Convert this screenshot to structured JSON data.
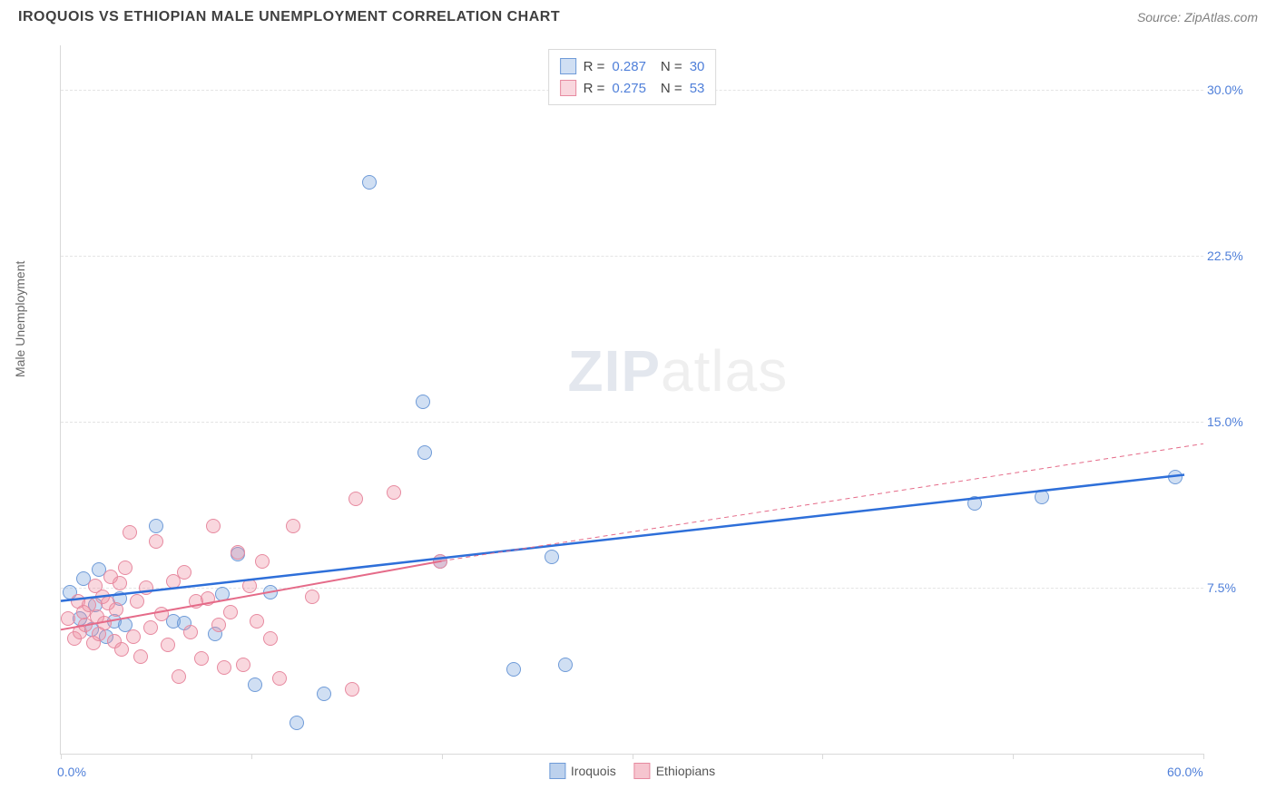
{
  "title": "IROQUOIS VS ETHIOPIAN MALE UNEMPLOYMENT CORRELATION CHART",
  "source": "Source: ZipAtlas.com",
  "ylabel": "Male Unemployment",
  "watermark_a": "ZIP",
  "watermark_b": "atlas",
  "chart": {
    "type": "scatter",
    "background_color": "#ffffff",
    "grid_color": "#e4e4e4",
    "axis_color": "#d9d9d9",
    "tick_label_color": "#4f7fd9",
    "label_color": "#666666",
    "title_fontsize": 16,
    "label_fontsize": 14,
    "xlim": [
      0,
      60
    ],
    "ylim": [
      0,
      32
    ],
    "x_ticks": [
      0,
      10,
      20,
      30,
      40,
      50,
      60
    ],
    "x_tick_labels": {
      "0": "0.0%",
      "60": "60.0%"
    },
    "y_ticks": [
      7.5,
      15.0,
      22.5,
      30.0
    ],
    "y_tick_labels": [
      "7.5%",
      "15.0%",
      "22.5%",
      "30.0%"
    ],
    "marker_radius": 8,
    "marker_border_width": 1.5,
    "series": [
      {
        "name": "Iroquois",
        "fill": "rgba(121,163,220,0.35)",
        "stroke": "#6f9bd8",
        "r_value": "0.287",
        "n_value": "30",
        "trend": {
          "x1": 0,
          "y1": 6.9,
          "x2": 59,
          "y2": 12.6,
          "color": "#2e6fd9",
          "width": 2.5,
          "dash": "none"
        },
        "trend_ext": null,
        "points": [
          [
            0.5,
            7.3
          ],
          [
            1.0,
            6.1
          ],
          [
            1.2,
            7.9
          ],
          [
            1.6,
            5.6
          ],
          [
            1.8,
            6.7
          ],
          [
            2.0,
            8.3
          ],
          [
            2.4,
            5.3
          ],
          [
            2.8,
            6.0
          ],
          [
            3.1,
            7.0
          ],
          [
            3.4,
            5.8
          ],
          [
            5.0,
            10.3
          ],
          [
            5.9,
            6.0
          ],
          [
            6.5,
            5.9
          ],
          [
            8.5,
            7.2
          ],
          [
            8.1,
            5.4
          ],
          [
            9.3,
            9.0
          ],
          [
            10.2,
            3.1
          ],
          [
            11.0,
            7.3
          ],
          [
            13.8,
            2.7
          ],
          [
            12.4,
            1.4
          ],
          [
            16.2,
            25.8
          ],
          [
            19.0,
            15.9
          ],
          [
            19.1,
            13.6
          ],
          [
            19.9,
            8.7
          ],
          [
            23.8,
            3.8
          ],
          [
            25.8,
            8.9
          ],
          [
            26.5,
            4.0
          ],
          [
            48.0,
            11.3
          ],
          [
            51.5,
            11.6
          ],
          [
            58.5,
            12.5
          ]
        ]
      },
      {
        "name": "Ethiopians",
        "fill": "rgba(238,140,160,0.35)",
        "stroke": "#e78aa0",
        "r_value": "0.275",
        "n_value": "53",
        "trend": {
          "x1": 0,
          "y1": 5.6,
          "x2": 20,
          "y2": 8.7,
          "color": "#e56b89",
          "width": 2,
          "dash": "none"
        },
        "trend_ext": {
          "x1": 20,
          "y1": 8.7,
          "x2": 60,
          "y2": 14.0,
          "color": "#e56b89",
          "width": 1,
          "dash": "5,4"
        },
        "points": [
          [
            0.4,
            6.1
          ],
          [
            0.7,
            5.2
          ],
          [
            0.9,
            6.9
          ],
          [
            1.0,
            5.5
          ],
          [
            1.2,
            6.4
          ],
          [
            1.3,
            5.8
          ],
          [
            1.5,
            6.7
          ],
          [
            1.7,
            5.0
          ],
          [
            1.8,
            7.6
          ],
          [
            1.9,
            6.2
          ],
          [
            2.0,
            5.4
          ],
          [
            2.2,
            7.1
          ],
          [
            2.3,
            5.9
          ],
          [
            2.5,
            6.8
          ],
          [
            2.6,
            8.0
          ],
          [
            2.8,
            5.1
          ],
          [
            2.9,
            6.5
          ],
          [
            3.1,
            7.7
          ],
          [
            3.2,
            4.7
          ],
          [
            3.4,
            8.4
          ],
          [
            3.6,
            10.0
          ],
          [
            3.8,
            5.3
          ],
          [
            4.0,
            6.9
          ],
          [
            4.2,
            4.4
          ],
          [
            4.5,
            7.5
          ],
          [
            4.7,
            5.7
          ],
          [
            5.0,
            9.6
          ],
          [
            5.3,
            6.3
          ],
          [
            5.6,
            4.9
          ],
          [
            5.9,
            7.8
          ],
          [
            6.2,
            3.5
          ],
          [
            6.5,
            8.2
          ],
          [
            6.8,
            5.5
          ],
          [
            7.1,
            6.9
          ],
          [
            7.4,
            4.3
          ],
          [
            7.7,
            7.0
          ],
          [
            8.0,
            10.3
          ],
          [
            8.3,
            5.8
          ],
          [
            8.6,
            3.9
          ],
          [
            8.9,
            6.4
          ],
          [
            9.3,
            9.1
          ],
          [
            9.6,
            4.0
          ],
          [
            9.9,
            7.6
          ],
          [
            10.3,
            6.0
          ],
          [
            10.6,
            8.7
          ],
          [
            11.0,
            5.2
          ],
          [
            11.5,
            3.4
          ],
          [
            12.2,
            10.3
          ],
          [
            13.2,
            7.1
          ],
          [
            15.5,
            11.5
          ],
          [
            15.3,
            2.9
          ],
          [
            17.5,
            11.8
          ],
          [
            19.9,
            8.7
          ]
        ]
      }
    ]
  },
  "legend_bottom": [
    {
      "label": "Iroquois",
      "fill": "rgba(121,163,220,0.5)",
      "stroke": "#6f9bd8"
    },
    {
      "label": "Ethiopians",
      "fill": "rgba(238,140,160,0.5)",
      "stroke": "#e78aa0"
    }
  ]
}
